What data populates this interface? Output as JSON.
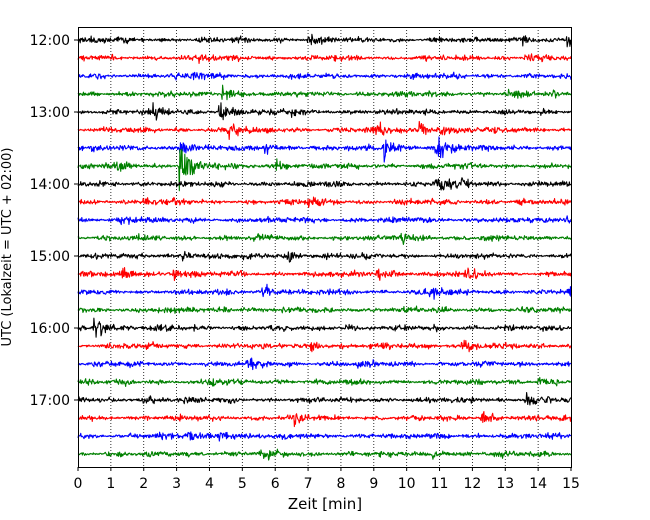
{
  "chart_data": {
    "type": "line",
    "title": "",
    "xlabel": "Zeit  [min]",
    "ylabel": "UTC (Lokalzeit = UTC + 02:00)",
    "xlim": [
      0,
      15
    ],
    "x_ticks": [
      "0",
      "1",
      "2",
      "3",
      "4",
      "5",
      "6",
      "7",
      "8",
      "9",
      "10",
      "11",
      "12",
      "13",
      "14",
      "15"
    ],
    "y_ticks": [
      "12:00",
      "13:00",
      "14:00",
      "15:00",
      "16:00",
      "17:00"
    ],
    "grid": "vertical dotted at each minute",
    "trace_interval_minutes": 15,
    "series_colors": [
      "#000000",
      "#ff0000",
      "#0000ff",
      "#008000"
    ],
    "traces": [
      {
        "start": "12:00",
        "color": "#000000",
        "events": [
          {
            "t": 7.0,
            "amp": 0.4
          },
          {
            "t": 13.5,
            "amp": 0.35
          },
          {
            "t": 14.9,
            "amp": 0.45
          }
        ]
      },
      {
        "start": "12:15",
        "color": "#ff0000",
        "events": [
          {
            "t": 3.7,
            "amp": 0.3
          },
          {
            "t": 13.6,
            "amp": 0.3
          }
        ]
      },
      {
        "start": "12:30",
        "color": "#0000ff",
        "events": [
          {
            "t": 3.5,
            "amp": 0.2
          }
        ]
      },
      {
        "start": "12:45",
        "color": "#008000",
        "events": [
          {
            "t": 4.4,
            "amp": 0.55
          },
          {
            "t": 13.0,
            "amp": 0.3
          }
        ]
      },
      {
        "start": "13:00",
        "color": "#000000",
        "events": [
          {
            "t": 2.3,
            "amp": 0.55
          },
          {
            "t": 4.3,
            "amp": 0.9
          },
          {
            "t": 6.5,
            "amp": 0.3
          }
        ]
      },
      {
        "start": "13:15",
        "color": "#ff0000",
        "events": [
          {
            "t": 4.6,
            "amp": 0.55
          },
          {
            "t": 9.1,
            "amp": 0.4
          },
          {
            "t": 10.4,
            "amp": 0.5
          },
          {
            "t": 11.0,
            "amp": 0.5
          }
        ]
      },
      {
        "start": "13:30",
        "color": "#0000ff",
        "events": [
          {
            "t": 3.1,
            "amp": 0.9
          },
          {
            "t": 9.3,
            "amp": 0.8
          },
          {
            "t": 10.9,
            "amp": 1.1
          },
          {
            "t": 5.7,
            "amp": 0.4
          }
        ]
      },
      {
        "start": "13:45",
        "color": "#008000",
        "events": [
          {
            "t": 3.1,
            "amp": 2.2
          },
          {
            "t": 1.2,
            "amp": 0.45
          },
          {
            "t": 6.0,
            "amp": 0.4
          }
        ]
      },
      {
        "start": "14:00",
        "color": "#000000",
        "events": [
          {
            "t": 10.9,
            "amp": 0.6
          },
          {
            "t": 11.7,
            "amp": 0.4
          }
        ]
      },
      {
        "start": "14:15",
        "color": "#ff0000",
        "events": [
          {
            "t": 2.0,
            "amp": 0.3
          },
          {
            "t": 7.0,
            "amp": 0.25
          }
        ]
      },
      {
        "start": "14:30",
        "color": "#0000ff",
        "events": [
          {
            "t": 1.3,
            "amp": 0.35
          },
          {
            "t": 14.8,
            "amp": 0.3
          }
        ]
      },
      {
        "start": "14:45",
        "color": "#008000",
        "events": [
          {
            "t": 9.8,
            "amp": 0.5
          }
        ]
      },
      {
        "start": "15:00",
        "color": "#000000",
        "events": [
          {
            "t": 3.2,
            "amp": 0.3
          },
          {
            "t": 6.4,
            "amp": 0.3
          }
        ]
      },
      {
        "start": "15:15",
        "color": "#ff0000",
        "events": [
          {
            "t": 1.3,
            "amp": 0.55
          },
          {
            "t": 2.9,
            "amp": 0.5
          },
          {
            "t": 9.1,
            "amp": 0.45
          },
          {
            "t": 11.8,
            "amp": 0.5
          }
        ]
      },
      {
        "start": "15:30",
        "color": "#0000ff",
        "events": [
          {
            "t": 5.6,
            "amp": 0.55
          },
          {
            "t": 10.7,
            "amp": 0.45
          },
          {
            "t": 14.9,
            "amp": 0.5
          }
        ]
      },
      {
        "start": "15:45",
        "color": "#008000",
        "events": [
          {
            "t": 4.4,
            "amp": 0.2
          }
        ]
      },
      {
        "start": "16:00",
        "color": "#000000",
        "events": [
          {
            "t": 0.5,
            "amp": 1.2
          },
          {
            "t": 8.1,
            "amp": 0.3
          }
        ]
      },
      {
        "start": "16:15",
        "color": "#ff0000",
        "events": [
          {
            "t": 11.7,
            "amp": 0.6
          },
          {
            "t": 7.1,
            "amp": 0.3
          }
        ]
      },
      {
        "start": "16:30",
        "color": "#0000ff",
        "events": [
          {
            "t": 5.2,
            "amp": 0.3
          },
          {
            "t": 8.5,
            "amp": 0.35
          }
        ]
      },
      {
        "start": "16:45",
        "color": "#008000",
        "events": [
          {
            "t": 4.0,
            "amp": 0.3
          },
          {
            "t": 14.0,
            "amp": 0.35
          }
        ]
      },
      {
        "start": "17:00",
        "color": "#000000",
        "events": [
          {
            "t": 13.6,
            "amp": 0.6
          },
          {
            "t": 2.0,
            "amp": 0.3
          }
        ]
      },
      {
        "start": "17:15",
        "color": "#ff0000",
        "events": [
          {
            "t": 12.3,
            "amp": 0.5
          },
          {
            "t": 6.6,
            "amp": 0.3
          }
        ]
      },
      {
        "start": "17:30",
        "color": "#0000ff",
        "events": [
          {
            "t": 3.3,
            "amp": 0.5
          },
          {
            "t": 4.3,
            "amp": 0.4
          }
        ]
      },
      {
        "start": "17:45",
        "color": "#008000",
        "events": [
          {
            "t": 10.8,
            "amp": 0.3
          },
          {
            "t": 5.6,
            "amp": 0.25
          }
        ]
      }
    ]
  }
}
